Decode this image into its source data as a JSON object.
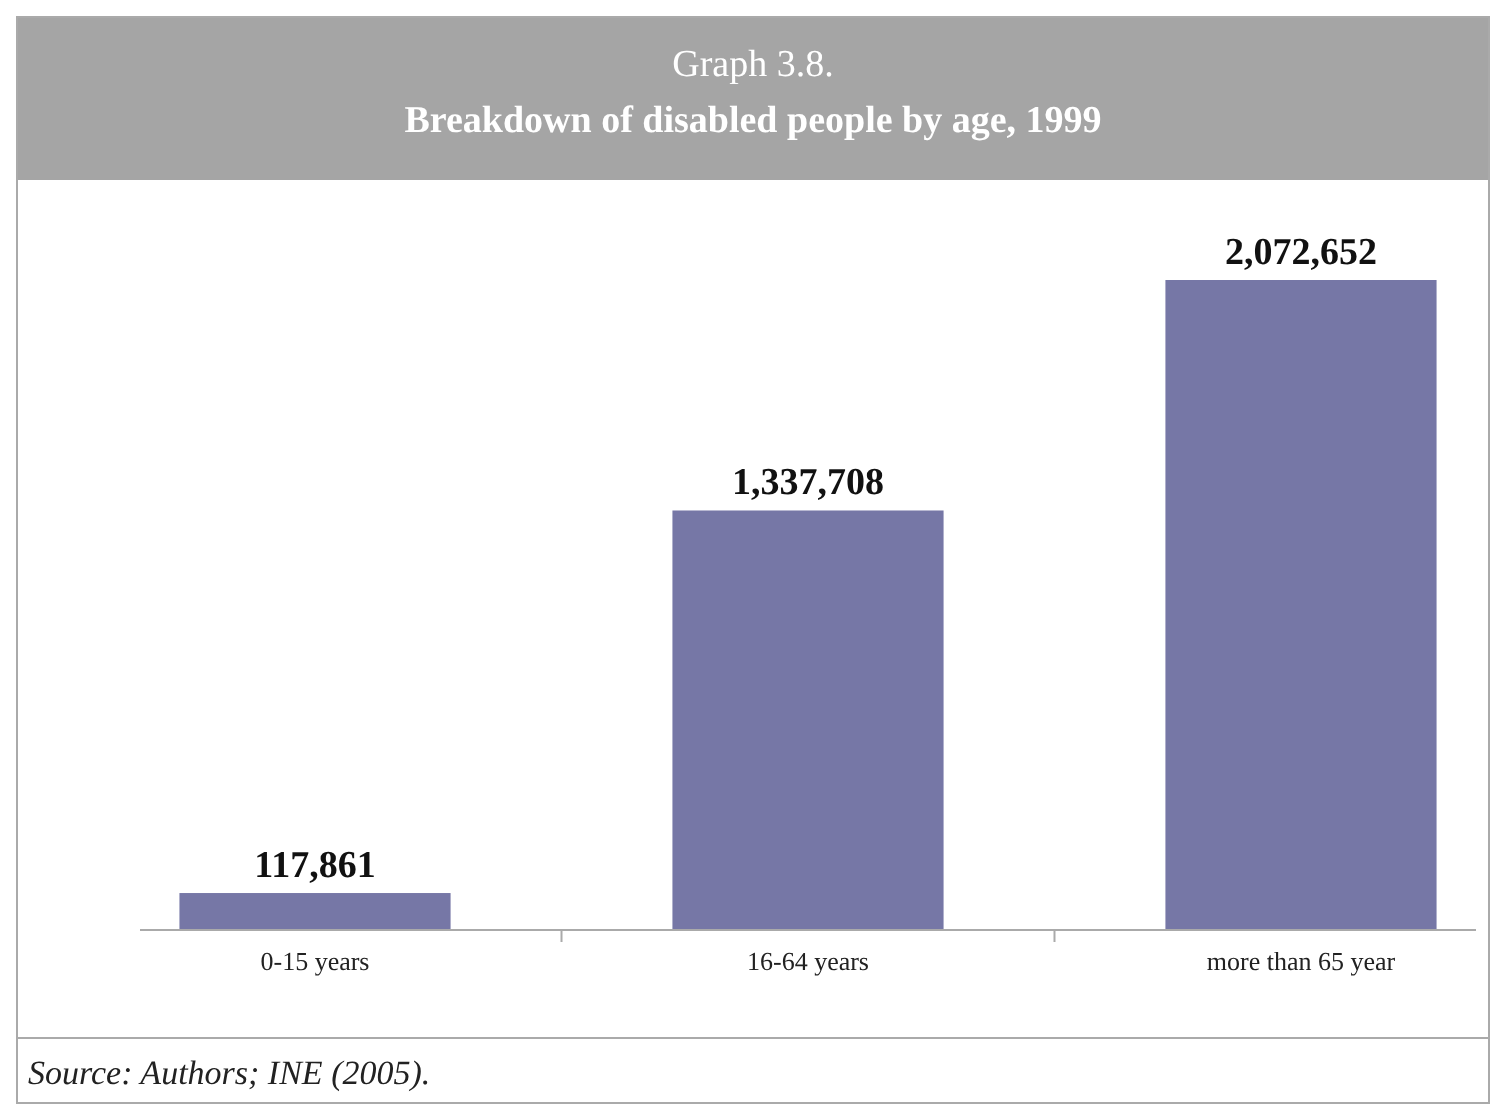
{
  "chart_data": {
    "type": "bar",
    "title": "Graph 3.8.",
    "subtitle": "Breakdown of disabled people by age, 1999",
    "categories": [
      "0-15 years",
      "16-64 years",
      "more than 65 year"
    ],
    "values": [
      117861,
      1337708,
      2072652
    ],
    "color": "#7677a6",
    "value_labels": [
      "117,861",
      "1,337,708",
      "2,072,652"
    ],
    "annotations": [
      "Source: Authors; INE (2005)."
    ]
  }
}
